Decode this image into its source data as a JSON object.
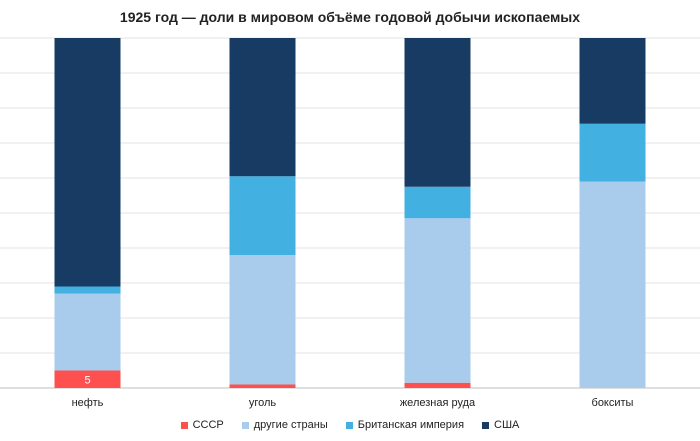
{
  "chart_data": {
    "type": "bar",
    "stacked": true,
    "percent_stacked": true,
    "title": "1925 год — доли в мировом объёме годовой добычи ископаемых",
    "categories": [
      "нефть",
      "уголь",
      "железная руда",
      "бокситы"
    ],
    "series": [
      {
        "name": "СССР",
        "color": "#ff5050",
        "values": [
          5,
          1,
          1.5,
          0
        ],
        "labels": [
          "5",
          "",
          "",
          ""
        ]
      },
      {
        "name": "другие страны",
        "color": "#a9cbec",
        "values": [
          22,
          37,
          47,
          59
        ]
      },
      {
        "name": "Британская империя",
        "color": "#43b0e2",
        "values": [
          2,
          22.5,
          9,
          16.5
        ]
      },
      {
        "name": "США",
        "color": "#173b63",
        "values": [
          71,
          39.5,
          42.5,
          24.5
        ]
      }
    ],
    "ylim": [
      0,
      100
    ],
    "grid": true,
    "legend_position": "bottom"
  }
}
